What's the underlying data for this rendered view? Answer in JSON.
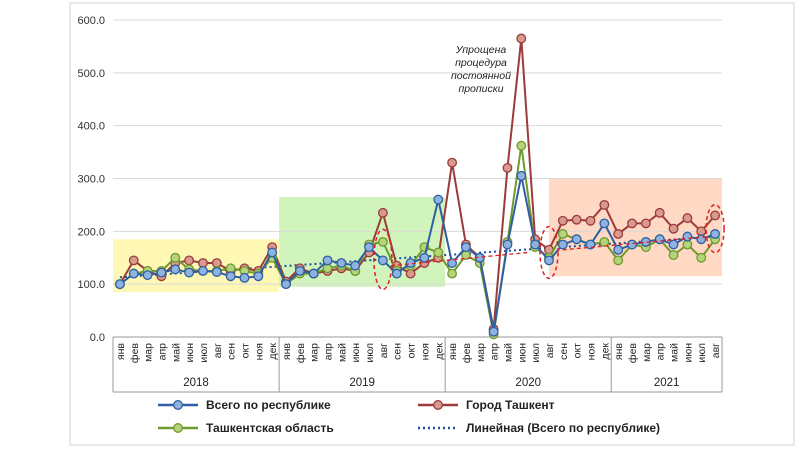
{
  "chart_data": {
    "type": "line",
    "ylim": [
      0,
      600
    ],
    "y_ticks": [
      "0.0",
      "100.0",
      "200.0",
      "300.0",
      "400.0",
      "500.0",
      "600.0"
    ],
    "grid": true,
    "legend_position": "bottom",
    "months": [
      "янв",
      "фев",
      "мар",
      "апр",
      "май",
      "июн",
      "июл",
      "авг",
      "сен",
      "окт",
      "ноя",
      "дек"
    ],
    "year_groups": [
      {
        "label": "2018",
        "count": 12
      },
      {
        "label": "2019",
        "count": 12
      },
      {
        "label": "2020",
        "count": 12
      },
      {
        "label": "2021",
        "count": 8
      }
    ],
    "annotation": [
      "Упрощена",
      "процедура",
      "постоянной",
      "прописки"
    ],
    "series": [
      {
        "name": "Всего по республике",
        "color": "#2e5fa3",
        "fill": "#8fb3de",
        "values": [
          100,
          120,
          117,
          122,
          128,
          122,
          125,
          123,
          115,
          112,
          115,
          160,
          100,
          125,
          120,
          145,
          140,
          135,
          170,
          145,
          120,
          140,
          150,
          260,
          140,
          170,
          150,
          10,
          175,
          305,
          175,
          145,
          175,
          185,
          175,
          215,
          165,
          175,
          180,
          185,
          175,
          190,
          185,
          195
        ]
      },
      {
        "name": "Город Ташкент",
        "color": "#9b3b3b",
        "fill": "#d89a8c",
        "values": [
          100,
          145,
          125,
          115,
          140,
          145,
          140,
          140,
          125,
          130,
          125,
          170,
          105,
          130,
          120,
          125,
          130,
          125,
          160,
          235,
          135,
          120,
          140,
          150,
          330,
          175,
          150,
          15,
          320,
          565,
          185,
          165,
          220,
          222,
          220,
          250,
          195,
          215,
          215,
          235,
          205,
          225,
          200,
          230
        ]
      },
      {
        "name": "Ташкентская область",
        "color": "#6f9a2f",
        "fill": "#b5d37a",
        "values": [
          100,
          120,
          125,
          125,
          150,
          128,
          125,
          125,
          130,
          125,
          120,
          150,
          100,
          120,
          120,
          130,
          135,
          125,
          175,
          180,
          125,
          135,
          170,
          160,
          120,
          155,
          140,
          5,
          180,
          362,
          170,
          150,
          195,
          185,
          175,
          180,
          145,
          175,
          170,
          185,
          155,
          175,
          150,
          185
        ]
      }
    ],
    "trendline": {
      "name": "Линейная (Всего по республике)",
      "color": "#1f4e9e",
      "start": 113,
      "end": 190
    }
  }
}
